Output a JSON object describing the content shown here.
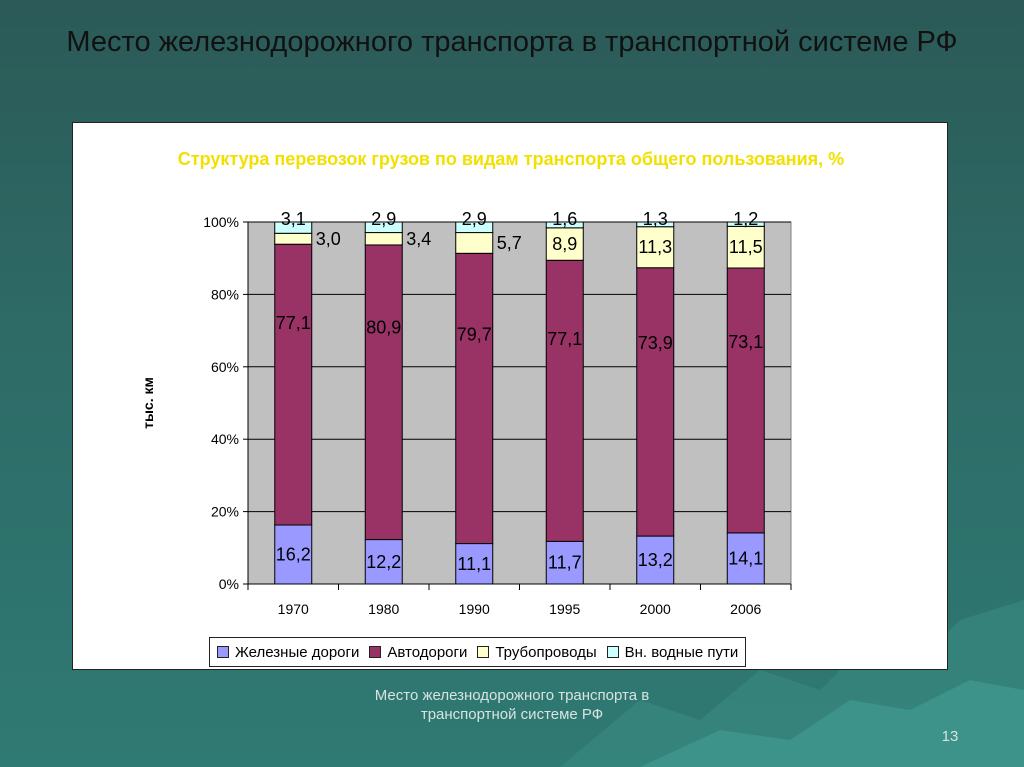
{
  "slide": {
    "title": "Место железнодорожного транспорта в транспортной системе РФ",
    "footer": "Место железнодорожного транспорта в транспортной системе РФ",
    "page_number": "13"
  },
  "chart_data": {
    "type": "bar",
    "stacked": true,
    "normalized_percent": true,
    "title": "Структура перевозок грузов по видам транспорта общего пользования, %",
    "ylabel": "тыс. км",
    "xlabel": "",
    "ylim": [
      0,
      100
    ],
    "y_ticks": [
      "0%",
      "20%",
      "40%",
      "60%",
      "80%",
      "100%"
    ],
    "categories": [
      "1970",
      "1980",
      "1990",
      "1995",
      "2000",
      "2006"
    ],
    "series": [
      {
        "name": "Железные дороги",
        "color": "#9999ff",
        "values": [
          16.2,
          12.2,
          11.1,
          11.7,
          13.2,
          14.1
        ],
        "labels": [
          "16,2",
          "12,2",
          "11,1",
          "11,7",
          "13,2",
          "14,1"
        ]
      },
      {
        "name": "Автодороги",
        "color": "#993366",
        "values": [
          77.1,
          80.9,
          79.7,
          77.1,
          73.9,
          73.1
        ],
        "labels": [
          "77,1",
          "80,9",
          "79,7",
          "77,1",
          "73,9",
          "73,1"
        ]
      },
      {
        "name": "Трубопроводы",
        "color": "#ffffcc",
        "values": [
          3.0,
          3.4,
          5.7,
          8.9,
          11.3,
          11.5
        ],
        "labels": [
          "3,0",
          "3,4",
          "5,7",
          "8,9",
          "11,3",
          "11,5"
        ]
      },
      {
        "name": "Вн. водные пути",
        "color": "#ccffff",
        "values": [
          3.1,
          2.9,
          2.9,
          1.6,
          1.3,
          1.2
        ],
        "labels": [
          "3,1",
          "2,9",
          "2,9",
          "1,6",
          "1,3",
          "1,2"
        ]
      }
    ],
    "grid": true,
    "plot_background": "#c0c0c0",
    "legend_position": "bottom"
  }
}
